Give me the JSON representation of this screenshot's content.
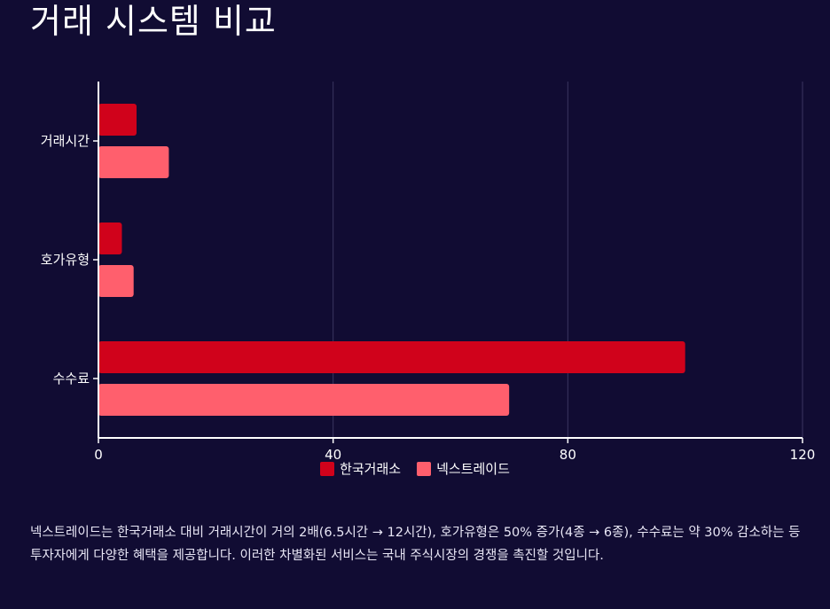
{
  "title": "거래 시스템 비교",
  "chart_data": {
    "type": "bar",
    "orientation": "horizontal",
    "categories": [
      "거래시간",
      "호가유형",
      "수수료"
    ],
    "series": [
      {
        "name": "한국거래소",
        "values": [
          6.5,
          4,
          100
        ],
        "color": "#d0021b"
      },
      {
        "name": "넥스트레이드",
        "values": [
          12,
          6,
          70
        ],
        "color": "#ff5f6d"
      }
    ],
    "xlim": [
      0,
      120
    ],
    "xticks": [
      0,
      40,
      80,
      120
    ],
    "grid": true,
    "legend_position": "bottom-center"
  },
  "caption": "넥스트레이드는 한국거래소 대비 거래시간이 거의 2배(6.5시간 → 12시간), 호가유형은 50% 증가(4종 → 6종), 수수료는 약 30% 감소하는 등 투자자에게 다양한 혜택을 제공합니다. 이러한 차별화된 서비스는 국내 주식시장의 경쟁을 촉진할 것입니다."
}
